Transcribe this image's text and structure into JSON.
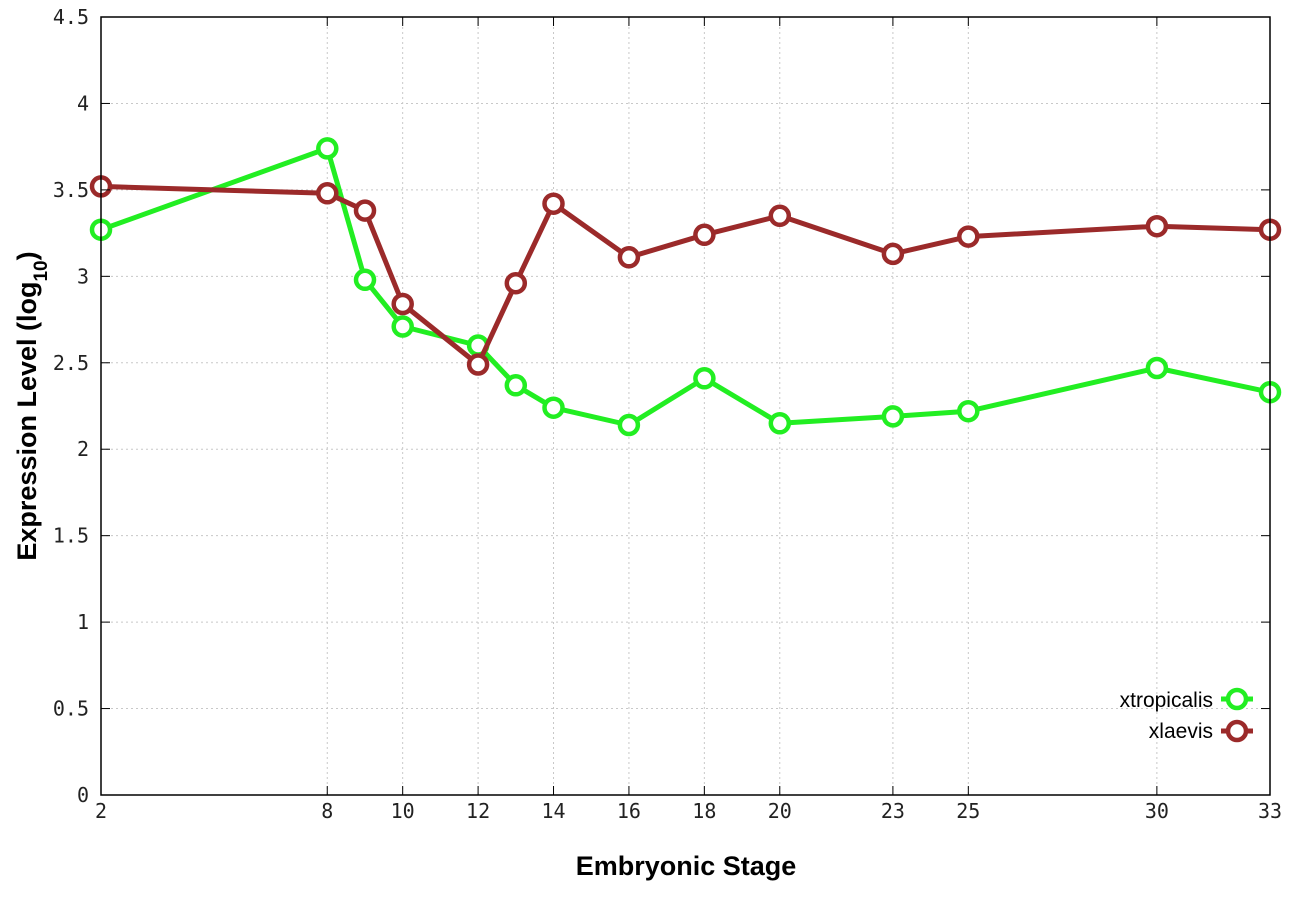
{
  "chart_data": {
    "type": "line",
    "title": "",
    "xlabel": "Embryonic Stage",
    "ylabel_main": "Expression Level (log",
    "ylabel_sub": "10",
    "ylabel_close": ")",
    "x": [
      2,
      8,
      9,
      10,
      12,
      13,
      14,
      16,
      18,
      20,
      23,
      25,
      30,
      33
    ],
    "x_tick_values": [
      2,
      8,
      10,
      12,
      14,
      16,
      18,
      20,
      23,
      25,
      30,
      33
    ],
    "x_tick_labels": [
      "2",
      "8",
      "10",
      "12",
      "14",
      "16",
      "18",
      "20",
      "23",
      "25",
      "30",
      "33"
    ],
    "y_tick_values": [
      0,
      0.5,
      1,
      1.5,
      2,
      2.5,
      3,
      3.5,
      4,
      4.5
    ],
    "y_tick_labels": [
      "0",
      "0.5",
      "1",
      "1.5",
      "2",
      "2.5",
      "3",
      "3.5",
      "4",
      "4.5"
    ],
    "xlim": [
      2,
      33
    ],
    "ylim": [
      0,
      4.5
    ],
    "grid": true,
    "legend_position": "bottom-right",
    "series": [
      {
        "name": "xtropicalis",
        "color": "#22ee22",
        "values": [
          3.27,
          3.74,
          2.98,
          2.71,
          2.6,
          2.37,
          2.24,
          2.14,
          2.41,
          2.15,
          2.19,
          2.22,
          2.47,
          2.33
        ]
      },
      {
        "name": "xlaevis",
        "color": "#9b2a2a",
        "values": [
          3.52,
          3.48,
          3.38,
          2.84,
          2.49,
          2.96,
          3.42,
          3.11,
          3.24,
          3.35,
          3.13,
          3.23,
          3.29,
          3.27
        ]
      }
    ]
  }
}
